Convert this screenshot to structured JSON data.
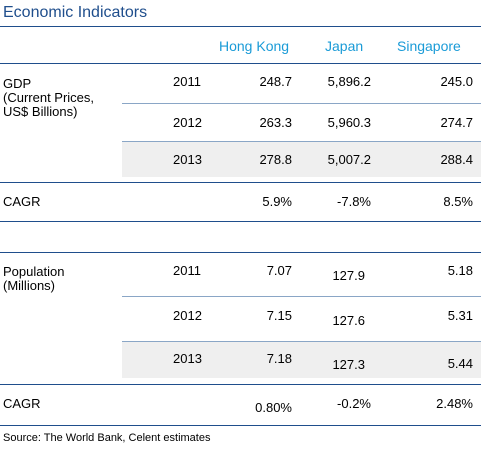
{
  "title": "Economic Indicators",
  "columns": [
    "Hong Kong",
    "Japan",
    "Singapore"
  ],
  "gdp": {
    "label_lines": [
      "GDP",
      "(Current Prices,",
      "US$ Billions)"
    ],
    "rows": [
      {
        "year": "2011",
        "hk": "248.7",
        "jp": "5,896.2",
        "sg": "245.0"
      },
      {
        "year": "2012",
        "hk": "263.3",
        "jp": "5,960.3",
        "sg": "274.7"
      },
      {
        "year": "2013",
        "hk": "278.8",
        "jp": "5,007.2",
        "sg": "288.4"
      }
    ],
    "cagr": {
      "label": "CAGR",
      "hk": "5.9%",
      "jp": "-7.8%",
      "sg": "8.5%"
    }
  },
  "population": {
    "label_lines": [
      "Population",
      "(Millions)"
    ],
    "rows": [
      {
        "year": "2011",
        "hk": "7.07",
        "jp": "127.9",
        "sg": "5.18"
      },
      {
        "year": "2012",
        "hk": "7.15",
        "jp": "127.6",
        "sg": "5.31"
      },
      {
        "year": "2013",
        "hk": "7.18",
        "jp": "127.3",
        "sg": "5.44"
      }
    ],
    "cagr": {
      "label": "CAGR",
      "hk": "0.80%",
      "jp": "-0.2%",
      "sg": "2.48%"
    }
  },
  "source": "Source: The World Bank, Celent estimates"
}
